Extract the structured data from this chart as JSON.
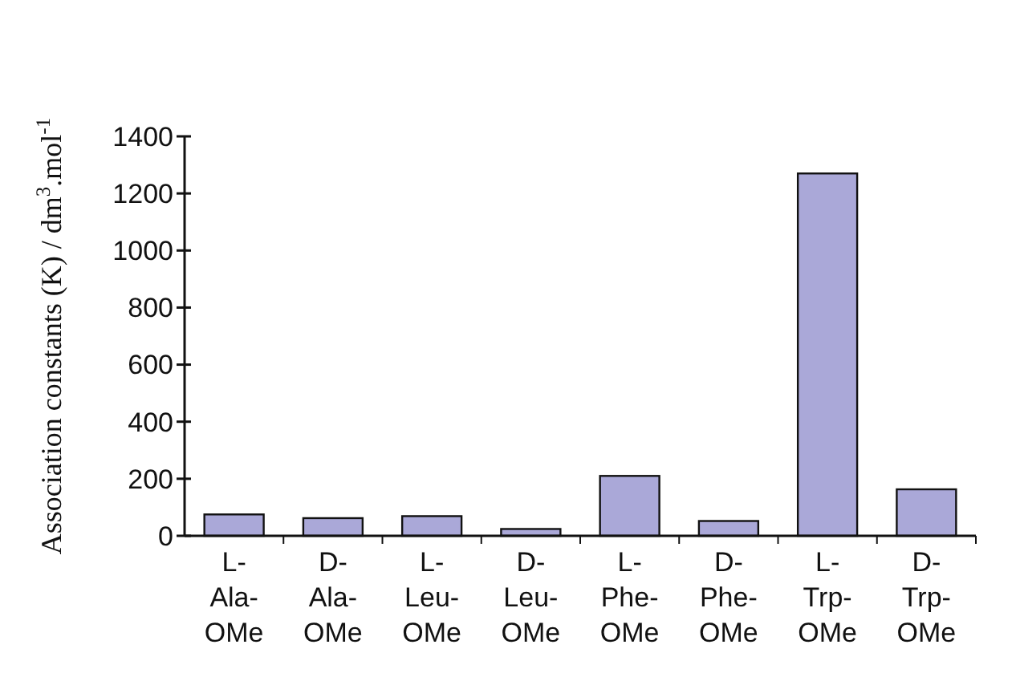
{
  "chart_data": {
    "type": "bar",
    "ylabel": "Association constants (K) / dm$^{3}$.mol$^{-1}$",
    "categories": [
      "L-Ala-OMe",
      "D-Ala-OMe",
      "L-Leu-OMe",
      "D-Leu-OMe",
      "L-Phe-OMe",
      "D-Phe-OMe",
      "L-Trp-OMe",
      "D-Trp-OMe"
    ],
    "values": [
      75,
      62,
      69,
      24,
      210,
      52,
      1270,
      163
    ],
    "color": "#aaa8d8",
    "ylim": [
      0,
      1400
    ],
    "yticks": [
      0,
      200,
      400,
      600,
      800,
      1000,
      1200,
      1400
    ],
    "grid": false
  }
}
